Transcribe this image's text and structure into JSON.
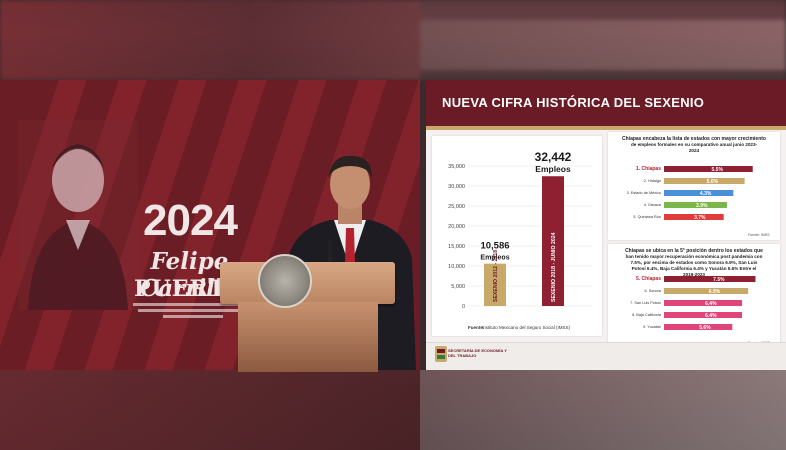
{
  "backdrop": {
    "year": "2024",
    "name": "Felipe Carrillo",
    "city": "PUERTO"
  },
  "slide": {
    "title": "NUEVA CIFRA HISTÓRICA DEL SEXENIO",
    "accent_color": "#6a1b25",
    "gold_color": "#c9a96a"
  },
  "chart_main": {
    "type": "bar",
    "categories": [
      "SEXENIO 2012 - 2018",
      "SEXENIO 2018 - JUNIO 2024"
    ],
    "values": [
      10586,
      32442
    ],
    "value_labels": [
      "10,586",
      "32,442"
    ],
    "unit_label": "Empleos",
    "ylim": [
      0,
      35000
    ],
    "yticks": [
      "0",
      "5,000",
      "10,000",
      "15,000",
      "20,000",
      "25,000",
      "30,000",
      "35,000"
    ],
    "colors": [
      "#c9a96a",
      "#8e2031"
    ],
    "source_label": "Fuente:",
    "source_text": "Instituto Mexicano del Seguro Social (IMSS)"
  },
  "chart_top": {
    "type": "bar",
    "title": "Chiapas encabeza la lista de estados con mayor crecimiento de empleos formales en su comparativo anual junio 2023- 2024",
    "categories": [
      "1. Chiapas",
      "2. Hidalgo",
      "3. Estado de México",
      "4. Oaxaca",
      "5. Quintana Roo"
    ],
    "values": [
      5.5,
      5.0,
      4.3,
      3.9,
      3.7
    ],
    "value_labels": [
      "5.5%",
      "5.0%",
      "4.3%",
      "3.9%",
      "3.7%"
    ],
    "colors": [
      "#8e2031",
      "#c9a96a",
      "#4a90d9",
      "#7ab648",
      "#e23b3b"
    ],
    "source": "Fuente: IMSS"
  },
  "chart_bottom": {
    "type": "bar",
    "title": "Chiapas se ubica en la 5° posición dentro los estados que han tenido mayor recuperación económica post pandemia con 7.5%, por encima de estados como Sonora 6.9%, San Luis Potosí 6.4%, Baja California 6.4% y Yucatán 5.6% Entre el 2019-2023",
    "categories": [
      "5. Chiapas",
      "6. Sonora",
      "7. San Luis Potosí",
      "8. Baja California",
      "9. Yucatán"
    ],
    "values": [
      7.5,
      6.9,
      6.4,
      6.4,
      5.6
    ],
    "value_labels": [
      "7.5%",
      "6.9%",
      "6.4%",
      "6.4%",
      "5.6%"
    ],
    "colors": [
      "#8e2031",
      "#c9a96a",
      "#e0457a",
      "#e0457a",
      "#e0457a"
    ],
    "source": "Fuente: INEGI"
  },
  "footer": {
    "org": "SECRETARÍA DE ECONOMÍA Y DEL TRABAJO"
  }
}
